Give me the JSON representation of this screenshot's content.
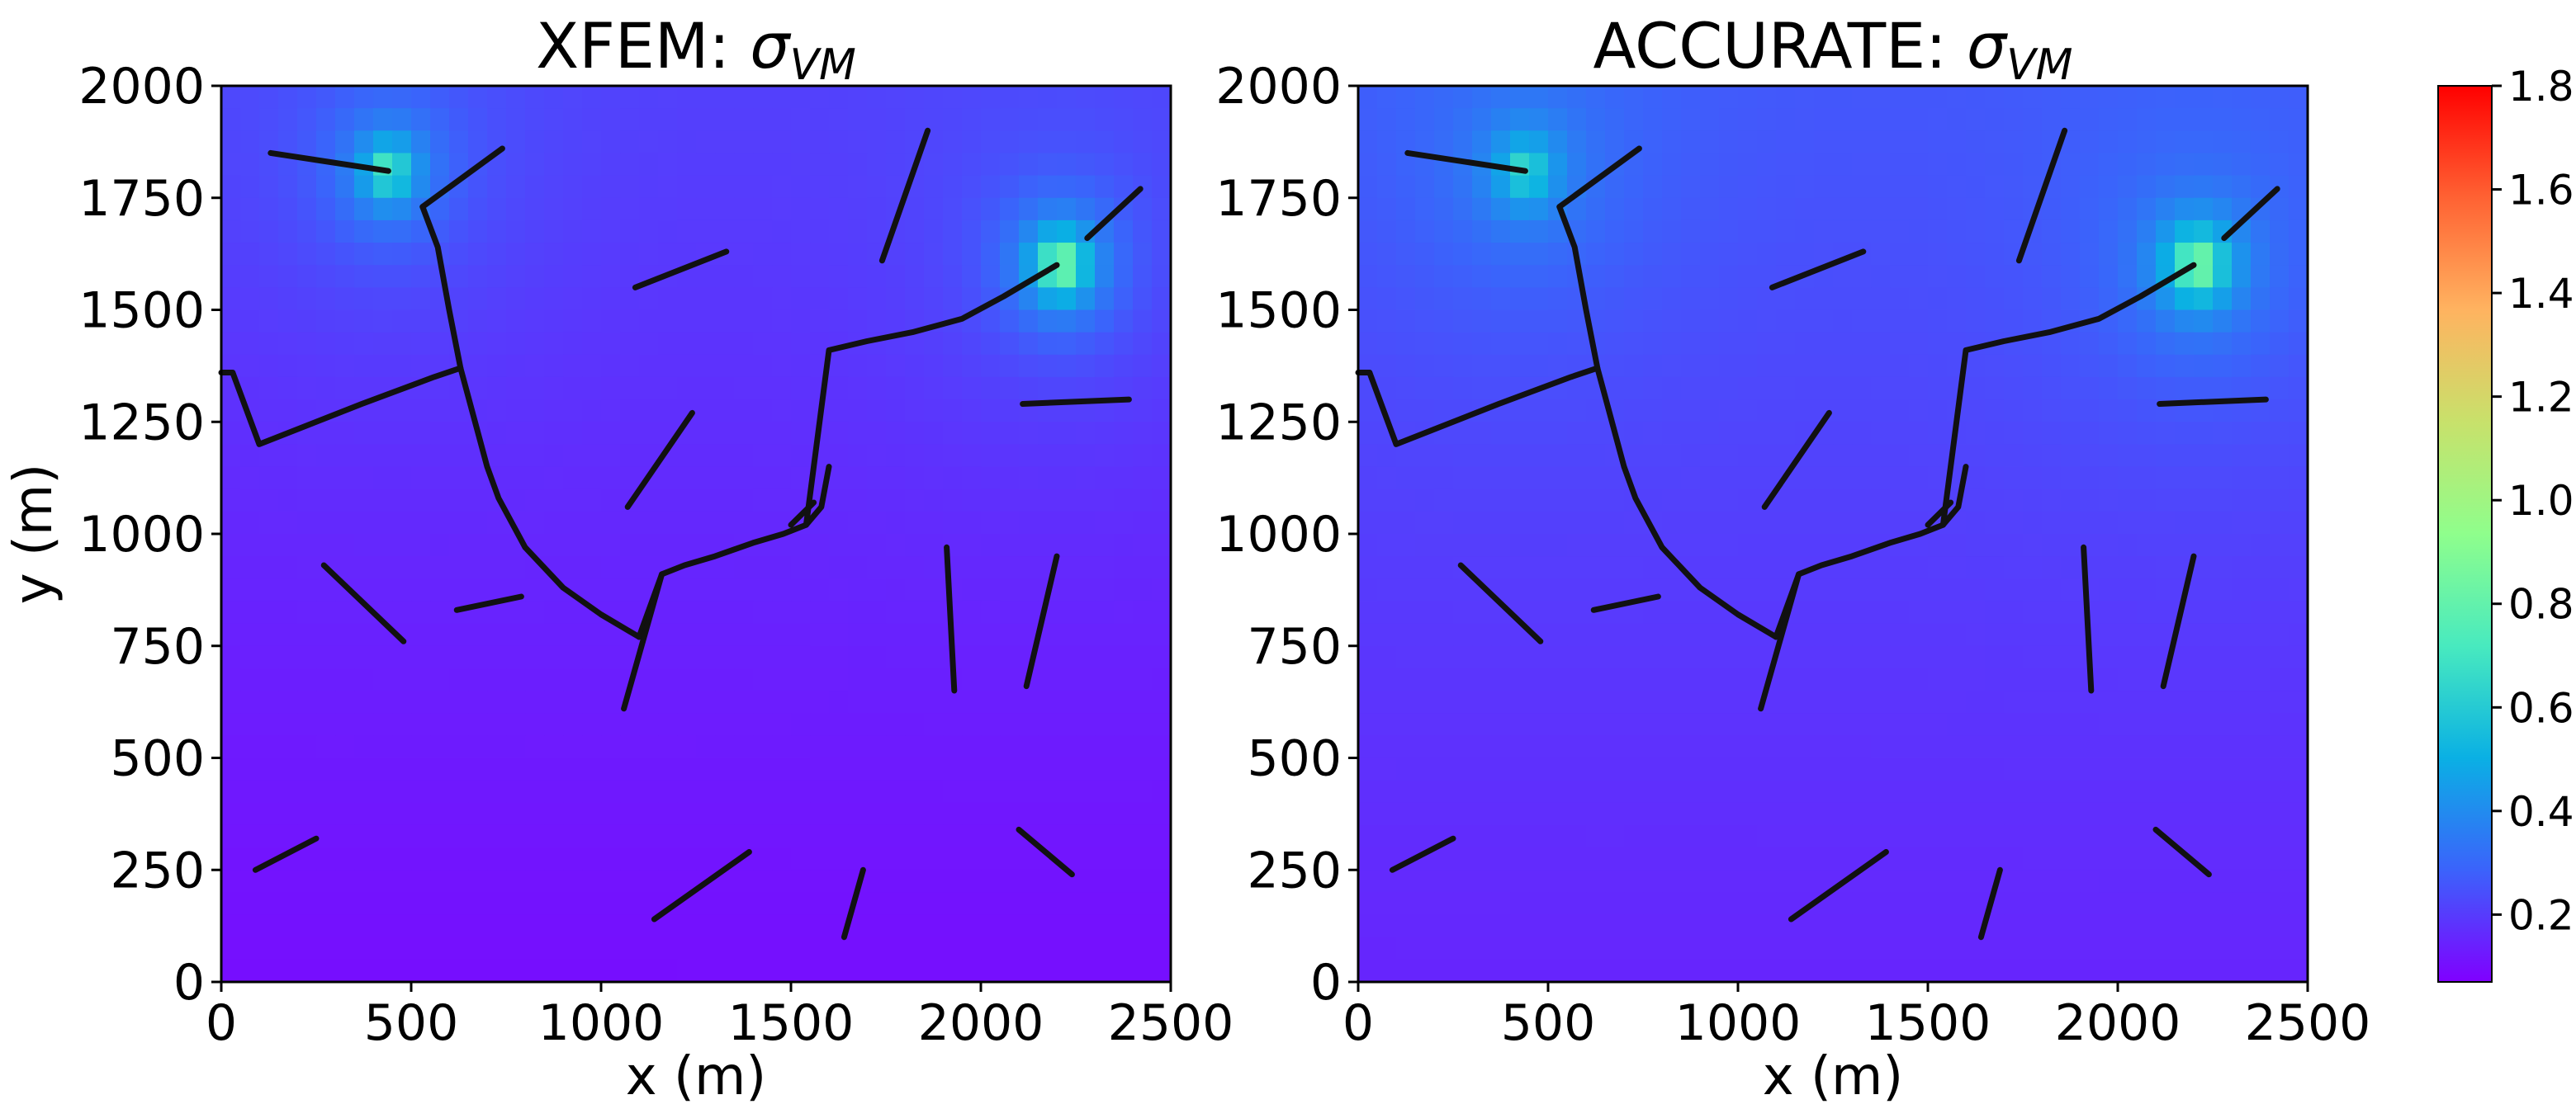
{
  "chart_data": [
    {
      "type": "heatmap",
      "title": "XFEM: ",
      "title_symbol": "σ",
      "title_sub": "VM",
      "xlabel": "x (m)",
      "ylabel": "y (m)",
      "xlim": [
        0,
        2500
      ],
      "ylim": [
        0,
        2000
      ],
      "xticks": [
        "0",
        "500",
        "1000",
        "1500",
        "2000",
        "2500"
      ],
      "yticks": [
        "0",
        "250",
        "500",
        "750",
        "1000",
        "1250",
        "1500",
        "1750",
        "2000"
      ],
      "background_value": 0.15,
      "hotspots": [
        {
          "x": 2210,
          "y": 1600,
          "peak": 0.95
        },
        {
          "x": 440,
          "y": 1810,
          "peak": 0.7
        }
      ],
      "fractures": [
        [
          [
            130,
            1850
          ],
          [
            440,
            1810
          ]
        ],
        [
          [
            530,
            1730
          ],
          [
            740,
            1860
          ]
        ],
        [
          [
            0,
            1360
          ],
          [
            30,
            1360
          ],
          [
            100,
            1200
          ],
          [
            370,
            1290
          ],
          [
            560,
            1350
          ],
          [
            630,
            1370
          ]
        ],
        [
          [
            530,
            1730
          ],
          [
            570,
            1640
          ],
          [
            600,
            1500
          ],
          [
            630,
            1370
          ],
          [
            700,
            1150
          ],
          [
            730,
            1080
          ],
          [
            800,
            970
          ],
          [
            900,
            880
          ],
          [
            1000,
            820
          ],
          [
            1100,
            770
          ]
        ],
        [
          [
            1100,
            770
          ],
          [
            1160,
            910
          ]
        ],
        [
          [
            1160,
            910
          ],
          [
            1060,
            610
          ]
        ],
        [
          [
            1160,
            910
          ],
          [
            1220,
            930
          ],
          [
            1300,
            950
          ],
          [
            1400,
            980
          ],
          [
            1480,
            1000
          ],
          [
            1540,
            1020
          ],
          [
            1580,
            1060
          ],
          [
            1600,
            1150
          ]
        ],
        [
          [
            1540,
            1020
          ],
          [
            1600,
            1410
          ],
          [
            1700,
            1430
          ],
          [
            1820,
            1450
          ],
          [
            1950,
            1480
          ],
          [
            2060,
            1530
          ],
          [
            2140,
            1570
          ],
          [
            2200,
            1600
          ]
        ],
        [
          [
            1500,
            1020
          ],
          [
            1560,
            1070
          ]
        ],
        [
          [
            1090,
            1550
          ],
          [
            1330,
            1630
          ]
        ],
        [
          [
            1070,
            1060
          ],
          [
            1240,
            1270
          ]
        ],
        [
          [
            1740,
            1610
          ],
          [
            1860,
            1900
          ]
        ],
        [
          [
            2280,
            1660
          ],
          [
            2420,
            1770
          ]
        ],
        [
          [
            2110,
            1290
          ],
          [
            2390,
            1300
          ]
        ],
        [
          [
            1910,
            970
          ],
          [
            1930,
            650
          ]
        ],
        [
          [
            2120,
            660
          ],
          [
            2200,
            950
          ]
        ],
        [
          [
            270,
            930
          ],
          [
            480,
            760
          ]
        ],
        [
          [
            620,
            830
          ],
          [
            790,
            860
          ]
        ],
        [
          [
            90,
            250
          ],
          [
            250,
            320
          ]
        ],
        [
          [
            1140,
            140
          ],
          [
            1390,
            290
          ]
        ],
        [
          [
            1640,
            100
          ],
          [
            1690,
            250
          ]
        ],
        [
          [
            2100,
            340
          ],
          [
            2240,
            240
          ]
        ]
      ]
    },
    {
      "type": "heatmap",
      "title": "ACCURATE: ",
      "title_symbol": "σ",
      "title_sub": "VM",
      "xlabel": "x (m)",
      "ylabel": "",
      "xlim": [
        0,
        2500
      ],
      "ylim": [
        0,
        2000
      ],
      "xticks": [
        "0",
        "500",
        "1000",
        "1500",
        "2000",
        "2500"
      ],
      "yticks": [
        "0",
        "250",
        "500",
        "750",
        "1000",
        "1250",
        "1500",
        "1750",
        "2000"
      ],
      "background_value": 0.2,
      "hotspots": [
        {
          "x": 2210,
          "y": 1600,
          "peak": 0.95
        },
        {
          "x": 440,
          "y": 1810,
          "peak": 0.6
        }
      ],
      "fractures": [
        [
          [
            130,
            1850
          ],
          [
            440,
            1810
          ]
        ],
        [
          [
            530,
            1730
          ],
          [
            740,
            1860
          ]
        ],
        [
          [
            0,
            1360
          ],
          [
            30,
            1360
          ],
          [
            100,
            1200
          ],
          [
            370,
            1290
          ],
          [
            560,
            1350
          ],
          [
            630,
            1370
          ]
        ],
        [
          [
            530,
            1730
          ],
          [
            570,
            1640
          ],
          [
            600,
            1500
          ],
          [
            630,
            1370
          ],
          [
            700,
            1150
          ],
          [
            730,
            1080
          ],
          [
            800,
            970
          ],
          [
            900,
            880
          ],
          [
            1000,
            820
          ],
          [
            1100,
            770
          ]
        ],
        [
          [
            1100,
            770
          ],
          [
            1160,
            910
          ]
        ],
        [
          [
            1160,
            910
          ],
          [
            1060,
            610
          ]
        ],
        [
          [
            1160,
            910
          ],
          [
            1220,
            930
          ],
          [
            1300,
            950
          ],
          [
            1400,
            980
          ],
          [
            1480,
            1000
          ],
          [
            1540,
            1020
          ],
          [
            1580,
            1060
          ],
          [
            1600,
            1150
          ]
        ],
        [
          [
            1540,
            1020
          ],
          [
            1600,
            1410
          ],
          [
            1700,
            1430
          ],
          [
            1820,
            1450
          ],
          [
            1950,
            1480
          ],
          [
            2060,
            1530
          ],
          [
            2140,
            1570
          ],
          [
            2200,
            1600
          ]
        ],
        [
          [
            1500,
            1020
          ],
          [
            1560,
            1070
          ]
        ],
        [
          [
            1090,
            1550
          ],
          [
            1330,
            1630
          ]
        ],
        [
          [
            1070,
            1060
          ],
          [
            1240,
            1270
          ]
        ],
        [
          [
            1740,
            1610
          ],
          [
            1860,
            1900
          ]
        ],
        [
          [
            2280,
            1660
          ],
          [
            2420,
            1770
          ]
        ],
        [
          [
            2110,
            1290
          ],
          [
            2390,
            1300
          ]
        ],
        [
          [
            1910,
            970
          ],
          [
            1930,
            650
          ]
        ],
        [
          [
            2120,
            660
          ],
          [
            2200,
            950
          ]
        ],
        [
          [
            270,
            930
          ],
          [
            480,
            760
          ]
        ],
        [
          [
            620,
            830
          ],
          [
            790,
            860
          ]
        ],
        [
          [
            90,
            250
          ],
          [
            250,
            320
          ]
        ],
        [
          [
            1140,
            140
          ],
          [
            1390,
            290
          ]
        ],
        [
          [
            1640,
            100
          ],
          [
            1690,
            250
          ]
        ],
        [
          [
            2100,
            340
          ],
          [
            2240,
            240
          ]
        ]
      ]
    }
  ],
  "colorbar": {
    "min": 0.07,
    "max": 1.8,
    "ticks": [
      "0.2",
      "0.4",
      "0.6",
      "0.8",
      "1.0",
      "1.2",
      "1.4",
      "1.6",
      "1.8"
    ],
    "tick_values": [
      0.2,
      0.4,
      0.6,
      0.8,
      1.0,
      1.2,
      1.4,
      1.6,
      1.8
    ],
    "colormap": "rainbow",
    "stops": [
      "#8000ff",
      "#3b63fb",
      "#0ab0e4",
      "#48eabf",
      "#8ffe8c",
      "#c8e16b",
      "#ffb360",
      "#ff6233",
      "#ff0000"
    ]
  },
  "colors": {
    "fracture": "#111111",
    "frame": "#000000"
  }
}
